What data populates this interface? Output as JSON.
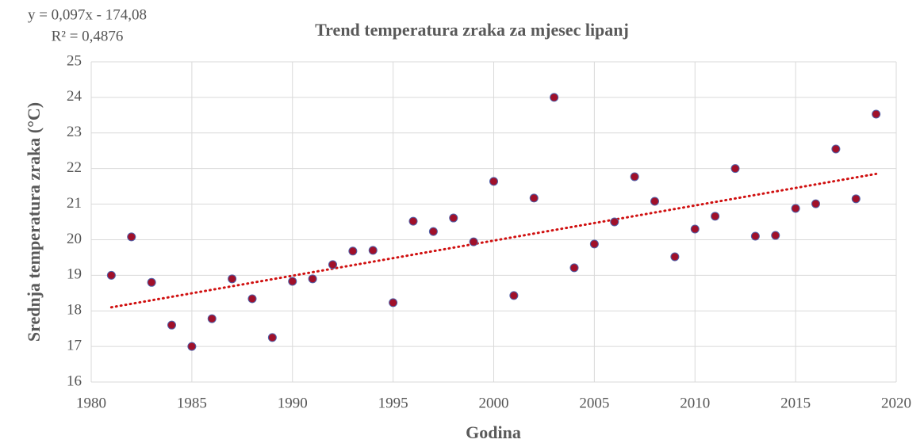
{
  "chart_data": {
    "type": "scatter",
    "title": "Trend temperatura zraka za mjesec lipanj",
    "xlabel": "Godina",
    "ylabel": "Srednja temperatura zraka (°C)",
    "equation": "y = 0,097x - 174,08",
    "r_squared": "R² = 0,4876",
    "series": [
      {
        "color": "#a0102a",
        "x": [
          1981,
          1982,
          1983,
          1984,
          1985,
          1986,
          1987,
          1988,
          1989,
          1990,
          1991,
          1992,
          1993,
          1994,
          1995,
          1996,
          1997,
          1998,
          1999,
          2000,
          2001,
          2002,
          2003,
          2004,
          2005,
          2006,
          2007,
          2008,
          2009,
          2010,
          2011,
          2012,
          2013,
          2014,
          2015,
          2016,
          2017,
          2018,
          2019
        ],
        "values": [
          19.0,
          20.08,
          18.8,
          17.6,
          17.0,
          17.78,
          18.9,
          18.34,
          17.25,
          18.83,
          18.9,
          19.3,
          19.68,
          19.7,
          18.23,
          20.52,
          20.23,
          20.61,
          19.94,
          21.64,
          18.43,
          21.17,
          24.0,
          19.21,
          19.88,
          20.5,
          21.77,
          21.08,
          19.52,
          20.3,
          20.66,
          22.0,
          20.1,
          20.12,
          20.88,
          21.01,
          22.55,
          21.15,
          23.53
        ]
      }
    ],
    "trendline": {
      "color": "#d01010",
      "x": [
        1981,
        2019
      ],
      "values": [
        18.1,
        21.85
      ]
    },
    "xlim": [
      1980,
      2020
    ],
    "xticks": [
      1980,
      1985,
      1990,
      1995,
      2000,
      2005,
      2010,
      2015,
      2020
    ],
    "ylim": [
      16,
      25
    ],
    "yticks": [
      16,
      17,
      18,
      19,
      20,
      21,
      22,
      23,
      24,
      25
    ],
    "grid": true
  }
}
